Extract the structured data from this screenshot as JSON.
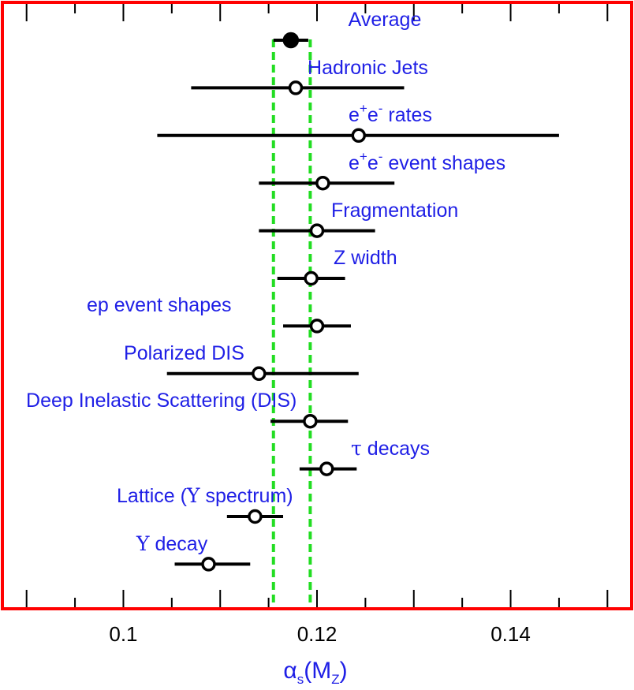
{
  "chart_data": {
    "type": "scatter",
    "subtype": "error-bar-summary",
    "xlim": [
      0.0875,
      0.1525
    ],
    "x_ticks": [
      0.1,
      0.12,
      0.14
    ],
    "x_tick_labels": [
      "0.1",
      "0.12",
      "0.14"
    ],
    "xlabel": {
      "main": "α",
      "sub1": "s",
      "mid": "(M",
      "sub2": "Z",
      "end": ")"
    },
    "band": {
      "low": 0.1155,
      "high": 0.1193,
      "color": "#22dd22",
      "style": "dashed"
    },
    "frame_color": "#ff0000",
    "label_color": "#1f1fe6",
    "points": [
      {
        "label": "Average",
        "value": 0.1173,
        "low": 0.1155,
        "high": 0.1191,
        "filled": true
      },
      {
        "label": "Hadronic Jets",
        "value": 0.1178,
        "low": 0.107,
        "high": 0.129,
        "filled": false
      },
      {
        "label": "e+e- rates",
        "value": 0.1243,
        "low": 0.1035,
        "high": 0.145,
        "filled": false
      },
      {
        "label": "e+e- event shapes",
        "value": 0.1206,
        "low": 0.114,
        "high": 0.128,
        "filled": false
      },
      {
        "label": "Fragmentation",
        "value": 0.12,
        "low": 0.114,
        "high": 0.126,
        "filled": false
      },
      {
        "label": "Z width",
        "value": 0.1194,
        "low": 0.1159,
        "high": 0.1229,
        "filled": false
      },
      {
        "label": "ep event shapes",
        "value": 0.12,
        "low": 0.1165,
        "high": 0.1235,
        "filled": false
      },
      {
        "label": "Polarized DIS",
        "value": 0.114,
        "low": 0.1045,
        "high": 0.1243,
        "filled": false
      },
      {
        "label": "Deep Inelastic Scattering (DIS)",
        "value": 0.1193,
        "low": 0.1152,
        "high": 0.1232,
        "filled": false
      },
      {
        "label": "τ decays",
        "value": 0.121,
        "low": 0.1182,
        "high": 0.1241,
        "filled": false
      },
      {
        "label": "Lattice (Υ spectrum)",
        "value": 0.1136,
        "low": 0.1107,
        "high": 0.1165,
        "filled": false
      },
      {
        "label": "Υ decay",
        "value": 0.1088,
        "low": 0.1053,
        "high": 0.1131,
        "filled": false
      }
    ]
  }
}
